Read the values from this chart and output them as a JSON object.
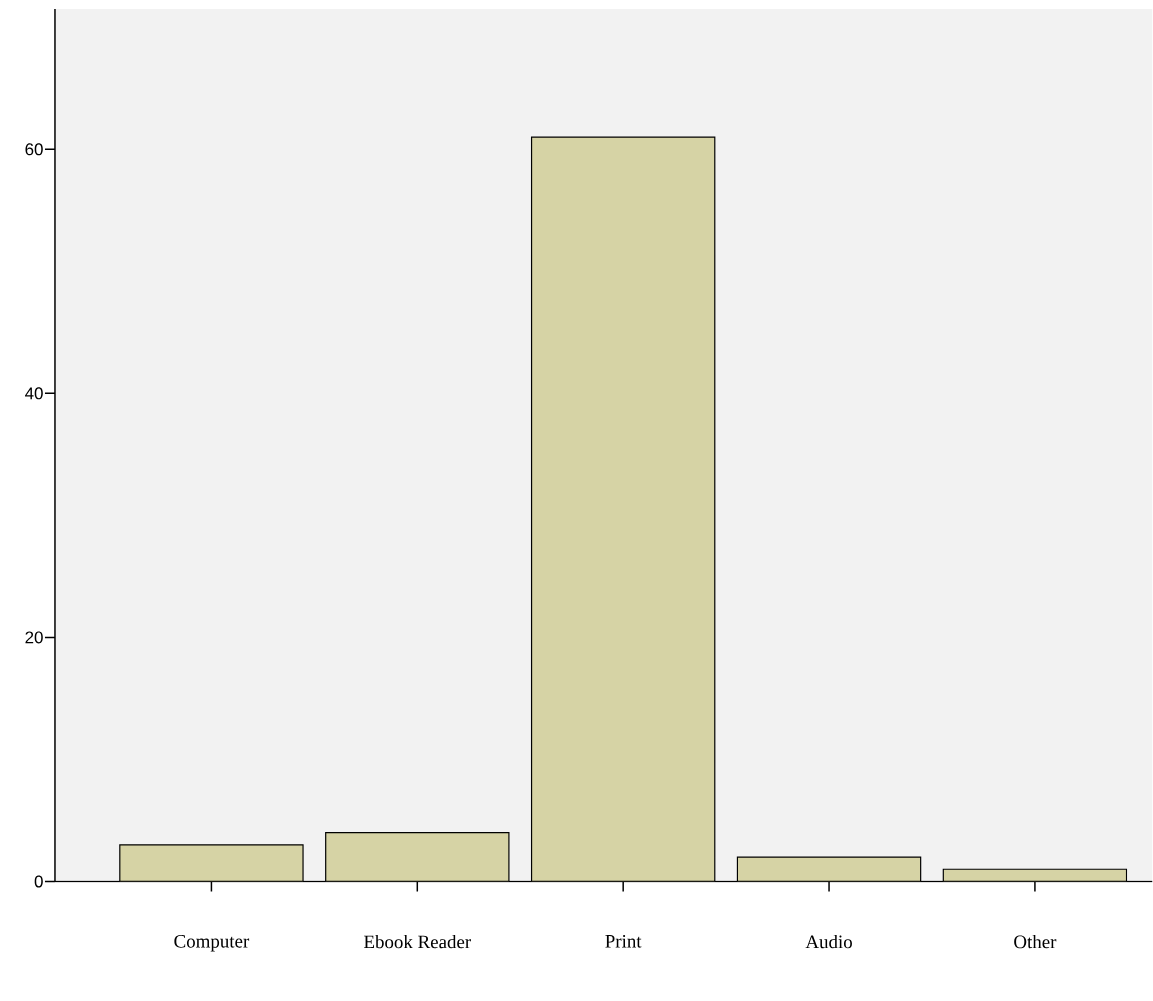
{
  "chart_data": {
    "type": "bar",
    "categories": [
      "Computer",
      "Ebook Reader",
      "Print",
      "Audio",
      "Other"
    ],
    "values": [
      3,
      4,
      61,
      2,
      1
    ],
    "color": "#d6d3a5",
    "ylim": [
      0,
      71.5
    ],
    "yticks": [
      0,
      20,
      40,
      60
    ],
    "grid": false
  }
}
